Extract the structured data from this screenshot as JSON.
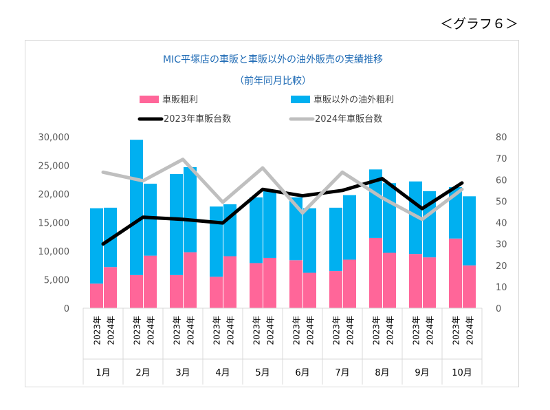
{
  "page_label": "＜グラフ６＞",
  "chart_data": {
    "type": "bar+line",
    "title": "MIC平塚店の車販と車販以外の油外販売の実績推移",
    "subtitle": "（前年同月比較）",
    "months": [
      "1月",
      "2月",
      "3月",
      "4月",
      "5月",
      "6月",
      "7月",
      "8月",
      "9月",
      "10月"
    ],
    "years": [
      "2023年",
      "2024年"
    ],
    "legend_position": "top",
    "grid": false,
    "bar_series": [
      {
        "name": "車販粗利",
        "color": "#ff6699",
        "values": [
          4300,
          7200,
          5800,
          9200,
          5800,
          9800,
          5500,
          9100,
          7900,
          8800,
          8400,
          6200,
          6500,
          8500,
          12300,
          9700,
          9500,
          8900,
          12200,
          7500
        ]
      },
      {
        "name": "車販以外の油外粗利",
        "color": "#00b0f0",
        "values": [
          13200,
          10400,
          23700,
          12600,
          17700,
          14900,
          12300,
          9100,
          11500,
          11700,
          11000,
          11300,
          11100,
          11300,
          12000,
          12200,
          12700,
          11600,
          9000,
          12100
        ]
      }
    ],
    "line_series": [
      {
        "name": "2023年車販台数",
        "color": "#000000",
        "values": [
          30,
          42.5,
          41.5,
          39.8,
          55.5,
          52.5,
          55,
          60.5,
          46.5,
          58.5
        ]
      },
      {
        "name": "2024年車販台数",
        "color": "#bfbfbf",
        "values": [
          63.5,
          59.5,
          69.5,
          49.5,
          65.5,
          44.5,
          63.5,
          51.5,
          41.5,
          55.5
        ]
      }
    ],
    "y_left": {
      "min": 0,
      "max": 30000,
      "ticks": [
        "0",
        "5,000",
        "10,000",
        "15,000",
        "20,000",
        "25,000",
        "30,000"
      ]
    },
    "y_right": {
      "min": 0,
      "max": 80,
      "ticks": [
        "0",
        "10",
        "20",
        "30",
        "40",
        "50",
        "60",
        "70",
        "80"
      ]
    }
  }
}
